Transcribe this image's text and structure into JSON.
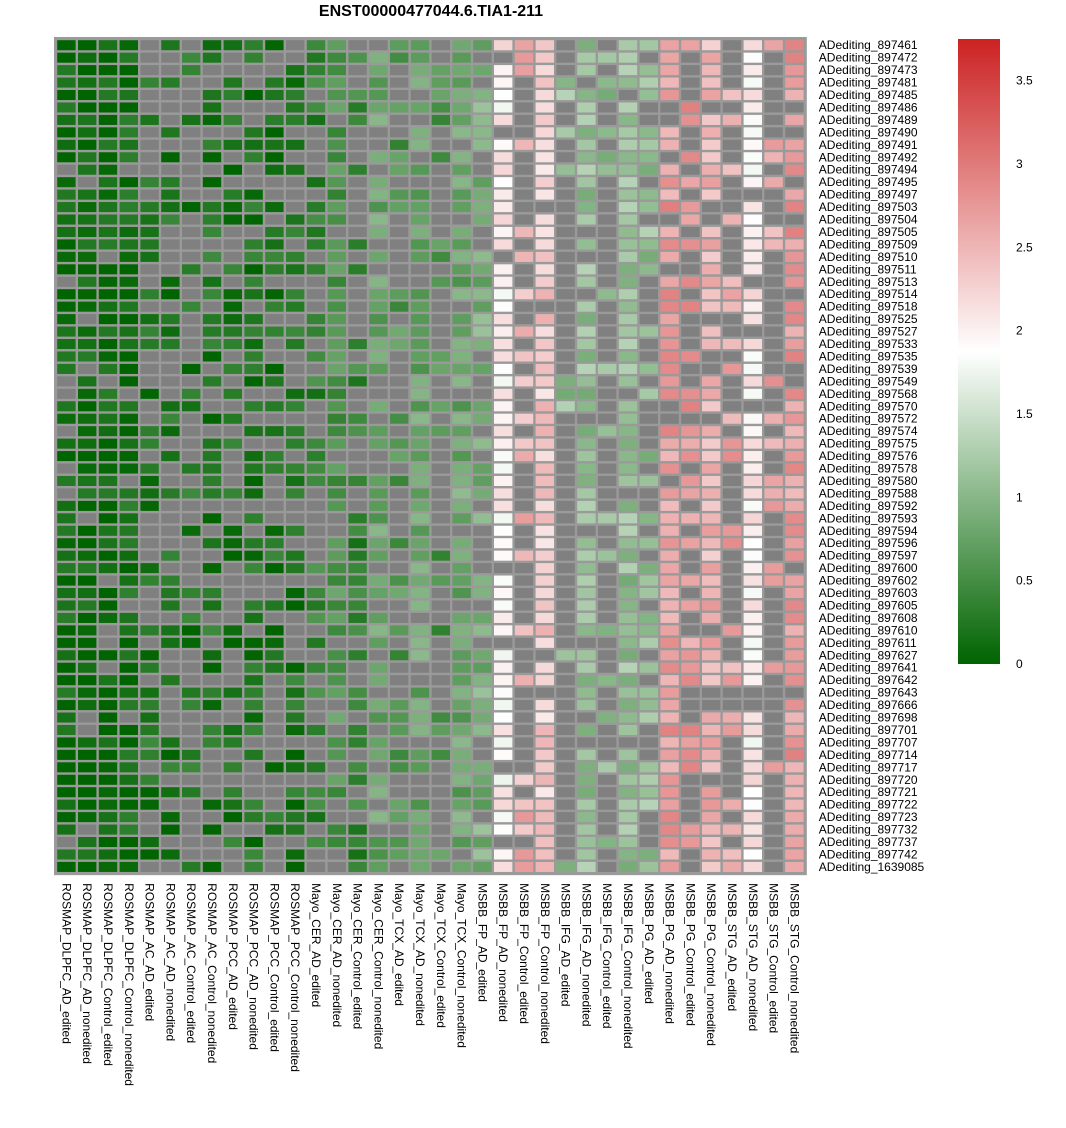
{
  "chart_data": {
    "type": "heatmap",
    "title": "ENST00000477044.6.TIA1-211",
    "columns": [
      "ROSMAP_DLPFC_AD_edited",
      "ROSMAP_DLPFC_AD_nonedited",
      "ROSMAP_DLPFC_Control_edited",
      "ROSMAP_DLPFC_Control_nonedited",
      "ROSMAP_AC_AD_edited",
      "ROSMAP_AC_AD_nonedited",
      "ROSMAP_AC_Control_edited",
      "ROSMAP_AC_Control_nonedited",
      "ROSMAP_PCC_AD_edited",
      "ROSMAP_PCC_AD_nonedited",
      "ROSMAP_PCC_Control_edited",
      "ROSMAP_PCC_Control_nonedited",
      "Mayo_CER_AD_edited",
      "Mayo_CER_AD_nonedited",
      "Mayo_CER_Control_edited",
      "Mayo_CER_Control_nonedited",
      "Mayo_TCX_AD_edited",
      "Mayo_TCX_AD_nonedited",
      "Mayo_TCX_Control_edited",
      "Mayo_TCX_Control_nonedited",
      "MSBB_FP_AD_edited",
      "MSBB_FP_AD_nonedited",
      "MSBB_FP_Control_edited",
      "MSBB_FP_Control_nonedited",
      "MSBB_IFG_AD_edited",
      "MSBB_IFG_AD_nonedited",
      "MSBB_IFG_Control_edited",
      "MSBB_IFG_Control_nonedited",
      "MSBB_PG_AD_edited",
      "MSBB_PG_AD_nonedited",
      "MSBB_PG_Control_edited",
      "MSBB_PG_Control_nonedited",
      "MSBB_STG_AD_edited",
      "MSBB_STG_AD_nonedited",
      "MSBB_STG_Control_edited",
      "MSBB_STG_Control_nonedited"
    ],
    "rows": [
      "ADediting_897461",
      "ADediting_897472",
      "ADediting_897473",
      "ADediting_897481",
      "ADediting_897485",
      "ADediting_897486",
      "ADediting_897489",
      "ADediting_897490",
      "ADediting_897491",
      "ADediting_897492",
      "ADediting_897494",
      "ADediting_897495",
      "ADediting_897497",
      "ADediting_897503",
      "ADediting_897504",
      "ADediting_897505",
      "ADediting_897509",
      "ADediting_897510",
      "ADediting_897511",
      "ADediting_897513",
      "ADediting_897514",
      "ADediting_897518",
      "ADediting_897525",
      "ADediting_897527",
      "ADediting_897533",
      "ADediting_897535",
      "ADediting_897539",
      "ADediting_897549",
      "ADediting_897568",
      "ADediting_897570",
      "ADediting_897572",
      "ADediting_897574",
      "ADediting_897575",
      "ADediting_897576",
      "ADediting_897578",
      "ADediting_897580",
      "ADediting_897588",
      "ADediting_897592",
      "ADediting_897593",
      "ADediting_897594",
      "ADediting_897596",
      "ADediting_897597",
      "ADediting_897600",
      "ADediting_897602",
      "ADediting_897603",
      "ADediting_897605",
      "ADediting_897608",
      "ADediting_897610",
      "ADediting_897611",
      "ADediting_897627",
      "ADediting_897641",
      "ADediting_897642",
      "ADediting_897643",
      "ADediting_897666",
      "ADediting_897698",
      "ADediting_897701",
      "ADediting_897707",
      "ADediting_897714",
      "ADediting_897717",
      "ADediting_897720",
      "ADediting_897721",
      "ADediting_897722",
      "ADediting_897723",
      "ADediting_897732",
      "ADediting_897737",
      "ADediting_897742",
      "ADediting_1639085"
    ],
    "column_base_values": [
      0.05,
      0.05,
      0.05,
      0.1,
      0.2,
      0.2,
      0.2,
      0.2,
      0.2,
      0.2,
      0.2,
      0.2,
      0.4,
      0.6,
      0.4,
      0.8,
      0.6,
      0.8,
      0.6,
      0.8,
      0.9,
      2.0,
      2.5,
      2.3,
      1.1,
      1.1,
      1.1,
      1.1,
      1.1,
      2.7,
      2.7,
      2.5,
      2.6,
      2.0,
      2.6,
      2.7
    ],
    "notes": "Grey cells denote missing values (NA).",
    "color_scale": {
      "min": 0,
      "max": 3.75,
      "stops": [
        {
          "value": 0,
          "color": "#006400"
        },
        {
          "value": 1.875,
          "color": "#ffffff"
        },
        {
          "value": 3.75,
          "color": "#cc2222"
        }
      ],
      "na_color": "#808080"
    },
    "legend": {
      "ticks": [
        "0",
        "0.5",
        "1",
        "1.5",
        "2",
        "2.5",
        "3",
        "3.5"
      ],
      "tick_values": [
        0,
        0.5,
        1,
        1.5,
        2,
        2.5,
        3,
        3.5
      ],
      "position": "top-right"
    }
  }
}
